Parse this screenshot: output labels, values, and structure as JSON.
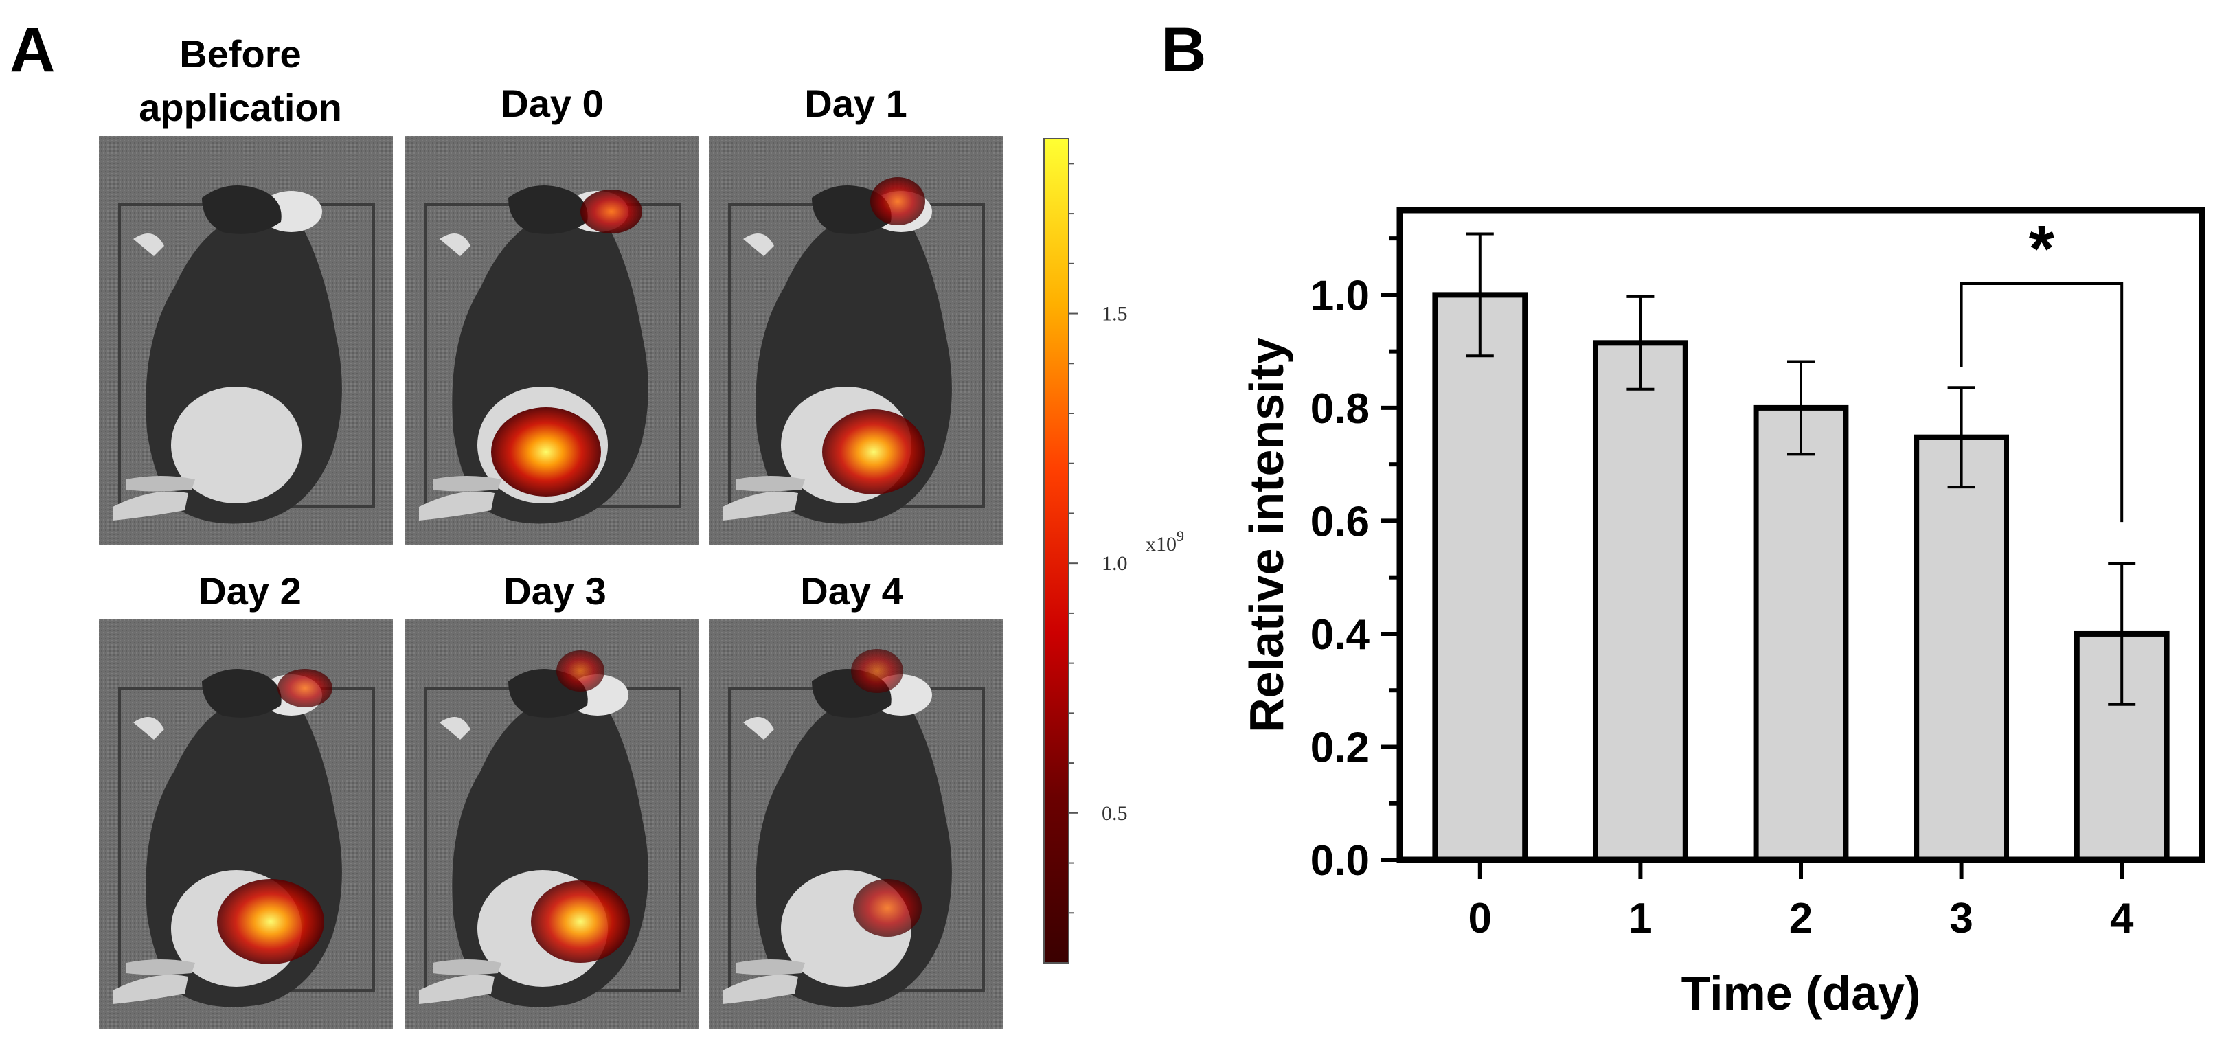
{
  "panel_a": {
    "letter": "A",
    "images": [
      {
        "title_lines": [
          "Before",
          "application"
        ],
        "day": null
      },
      {
        "title_lines": [
          "Day 0"
        ],
        "day": 0
      },
      {
        "title_lines": [
          "Day 1"
        ],
        "day": 1
      },
      {
        "title_lines": [
          "Day 2"
        ],
        "day": 2
      },
      {
        "title_lines": [
          "Day 3"
        ],
        "day": 3
      },
      {
        "title_lines": [
          "Day 4"
        ],
        "day": 4
      }
    ],
    "colorbar": {
      "ticks": [
        "1.5",
        "1.0",
        "0.5"
      ],
      "tick_values": [
        1.5,
        1.0,
        0.5
      ],
      "range": [
        0.2,
        1.85
      ],
      "unit_base": "x10",
      "unit_exp": "9",
      "colors": [
        "#ffff33",
        "#ffb000",
        "#ff4000",
        "#cc0000",
        "#6a0000",
        "#3a0000"
      ]
    }
  },
  "panel_b": {
    "letter": "B"
  },
  "chart_data": {
    "type": "bar",
    "categories": [
      "0",
      "1",
      "2",
      "3",
      "4"
    ],
    "values": [
      1.0,
      0.915,
      0.8,
      0.748,
      0.4
    ],
    "errors": [
      0.108,
      0.082,
      0.082,
      0.088,
      0.125
    ],
    "title": "",
    "xlabel": "Time (day)",
    "ylabel": "Relative intensity",
    "ylim": [
      0.0,
      1.15
    ],
    "yticks": [
      "0.0",
      "0.2",
      "0.4",
      "0.6",
      "0.8",
      "1.0"
    ],
    "ytick_values": [
      0.0,
      0.2,
      0.4,
      0.6,
      0.8,
      1.0
    ],
    "grid": false,
    "bar_color": "#d3d3d3",
    "significance": {
      "from": "3",
      "to": "4",
      "label": "*"
    }
  }
}
